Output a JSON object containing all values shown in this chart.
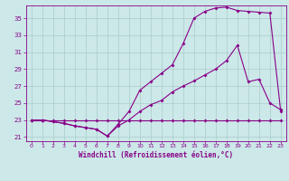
{
  "xlabel": "Windchill (Refroidissement éolien,°C)",
  "background_color": "#cce8e8",
  "grid_color": "#aacccc",
  "line_color": "#880088",
  "xlim": [
    -0.5,
    23.5
  ],
  "ylim": [
    20.5,
    36.5
  ],
  "yticks": [
    21,
    23,
    25,
    27,
    29,
    31,
    33,
    35
  ],
  "xticks": [
    0,
    1,
    2,
    3,
    4,
    5,
    6,
    7,
    8,
    9,
    10,
    11,
    12,
    13,
    14,
    15,
    16,
    17,
    18,
    19,
    20,
    21,
    22,
    23
  ],
  "series1_x": [
    0,
    1,
    2,
    3,
    4,
    5,
    6,
    7,
    8,
    9,
    10,
    11,
    12,
    13,
    14,
    15,
    16,
    17,
    18,
    19,
    20,
    21,
    22,
    23
  ],
  "series1_y": [
    23,
    23,
    23,
    23,
    23,
    23,
    23,
    23,
    23,
    23,
    23,
    23,
    23,
    23,
    23,
    23,
    23,
    23,
    23,
    23,
    23,
    23,
    23,
    23
  ],
  "series2_x": [
    0,
    1,
    2,
    3,
    4,
    5,
    6,
    7,
    8,
    9,
    10,
    11,
    12,
    13,
    14,
    15,
    16,
    17,
    18,
    19,
    20,
    21,
    22,
    23
  ],
  "series2_y": [
    23,
    23,
    22.8,
    22.6,
    22.3,
    22.1,
    21.9,
    21.1,
    22.3,
    23.0,
    24.0,
    24.8,
    25.3,
    26.3,
    27.0,
    27.6,
    28.3,
    29.0,
    30.0,
    31.8,
    27.5,
    27.8,
    25.0,
    24.2
  ],
  "series3_x": [
    0,
    1,
    2,
    3,
    4,
    5,
    6,
    7,
    8,
    9,
    10,
    11,
    12,
    13,
    14,
    15,
    16,
    17,
    18,
    19,
    20,
    21,
    22,
    23
  ],
  "series3_y": [
    23,
    23,
    22.8,
    22.6,
    22.3,
    22.1,
    21.9,
    21.1,
    22.5,
    24.0,
    26.5,
    27.5,
    28.5,
    29.5,
    32.0,
    35.0,
    35.8,
    36.2,
    36.3,
    35.9,
    35.8,
    35.7,
    35.6,
    24.0
  ]
}
